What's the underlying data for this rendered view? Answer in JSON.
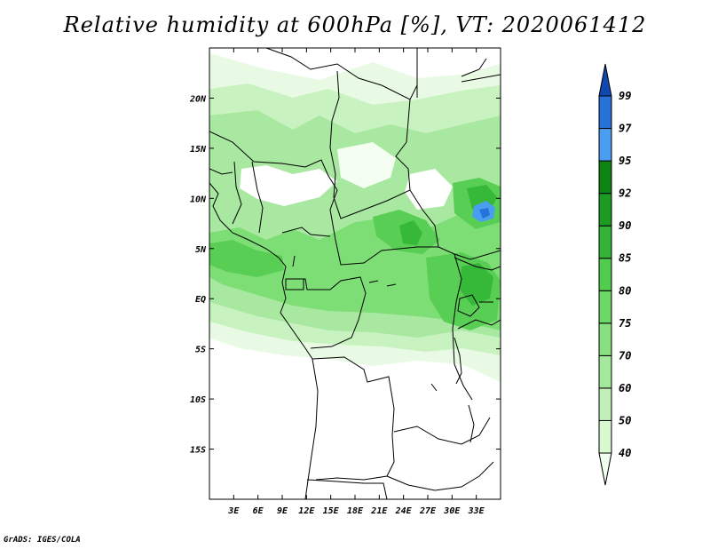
{
  "title": "Relative humidity at 600hPa [%], VT: 2020061412",
  "footer": "GrADS: IGES/COLA",
  "map": {
    "lon_range": [
      0,
      36
    ],
    "lat_range": [
      -20,
      25
    ],
    "lat_ticks": [
      "20N",
      "15N",
      "10N",
      "5N",
      "EQ",
      "5S",
      "10S",
      "15S"
    ],
    "lon_ticks": [
      "3E",
      "6E",
      "9E",
      "12E",
      "15E",
      "18E",
      "21E",
      "24E",
      "27E",
      "30E",
      "33E"
    ]
  },
  "colorbar": {
    "labels": [
      "40",
      "50",
      "60",
      "70",
      "75",
      "80",
      "85",
      "90",
      "92",
      "95",
      "97",
      "99"
    ],
    "colors": [
      "#f0fff0",
      "#d8f8d0",
      "#c0f0b8",
      "#a4e89c",
      "#88e080",
      "#6cd866",
      "#50cc4e",
      "#34b436",
      "#1c9a22",
      "#0e8414",
      "#4a9ef0",
      "#2672d8",
      "#1048b0"
    ]
  }
}
